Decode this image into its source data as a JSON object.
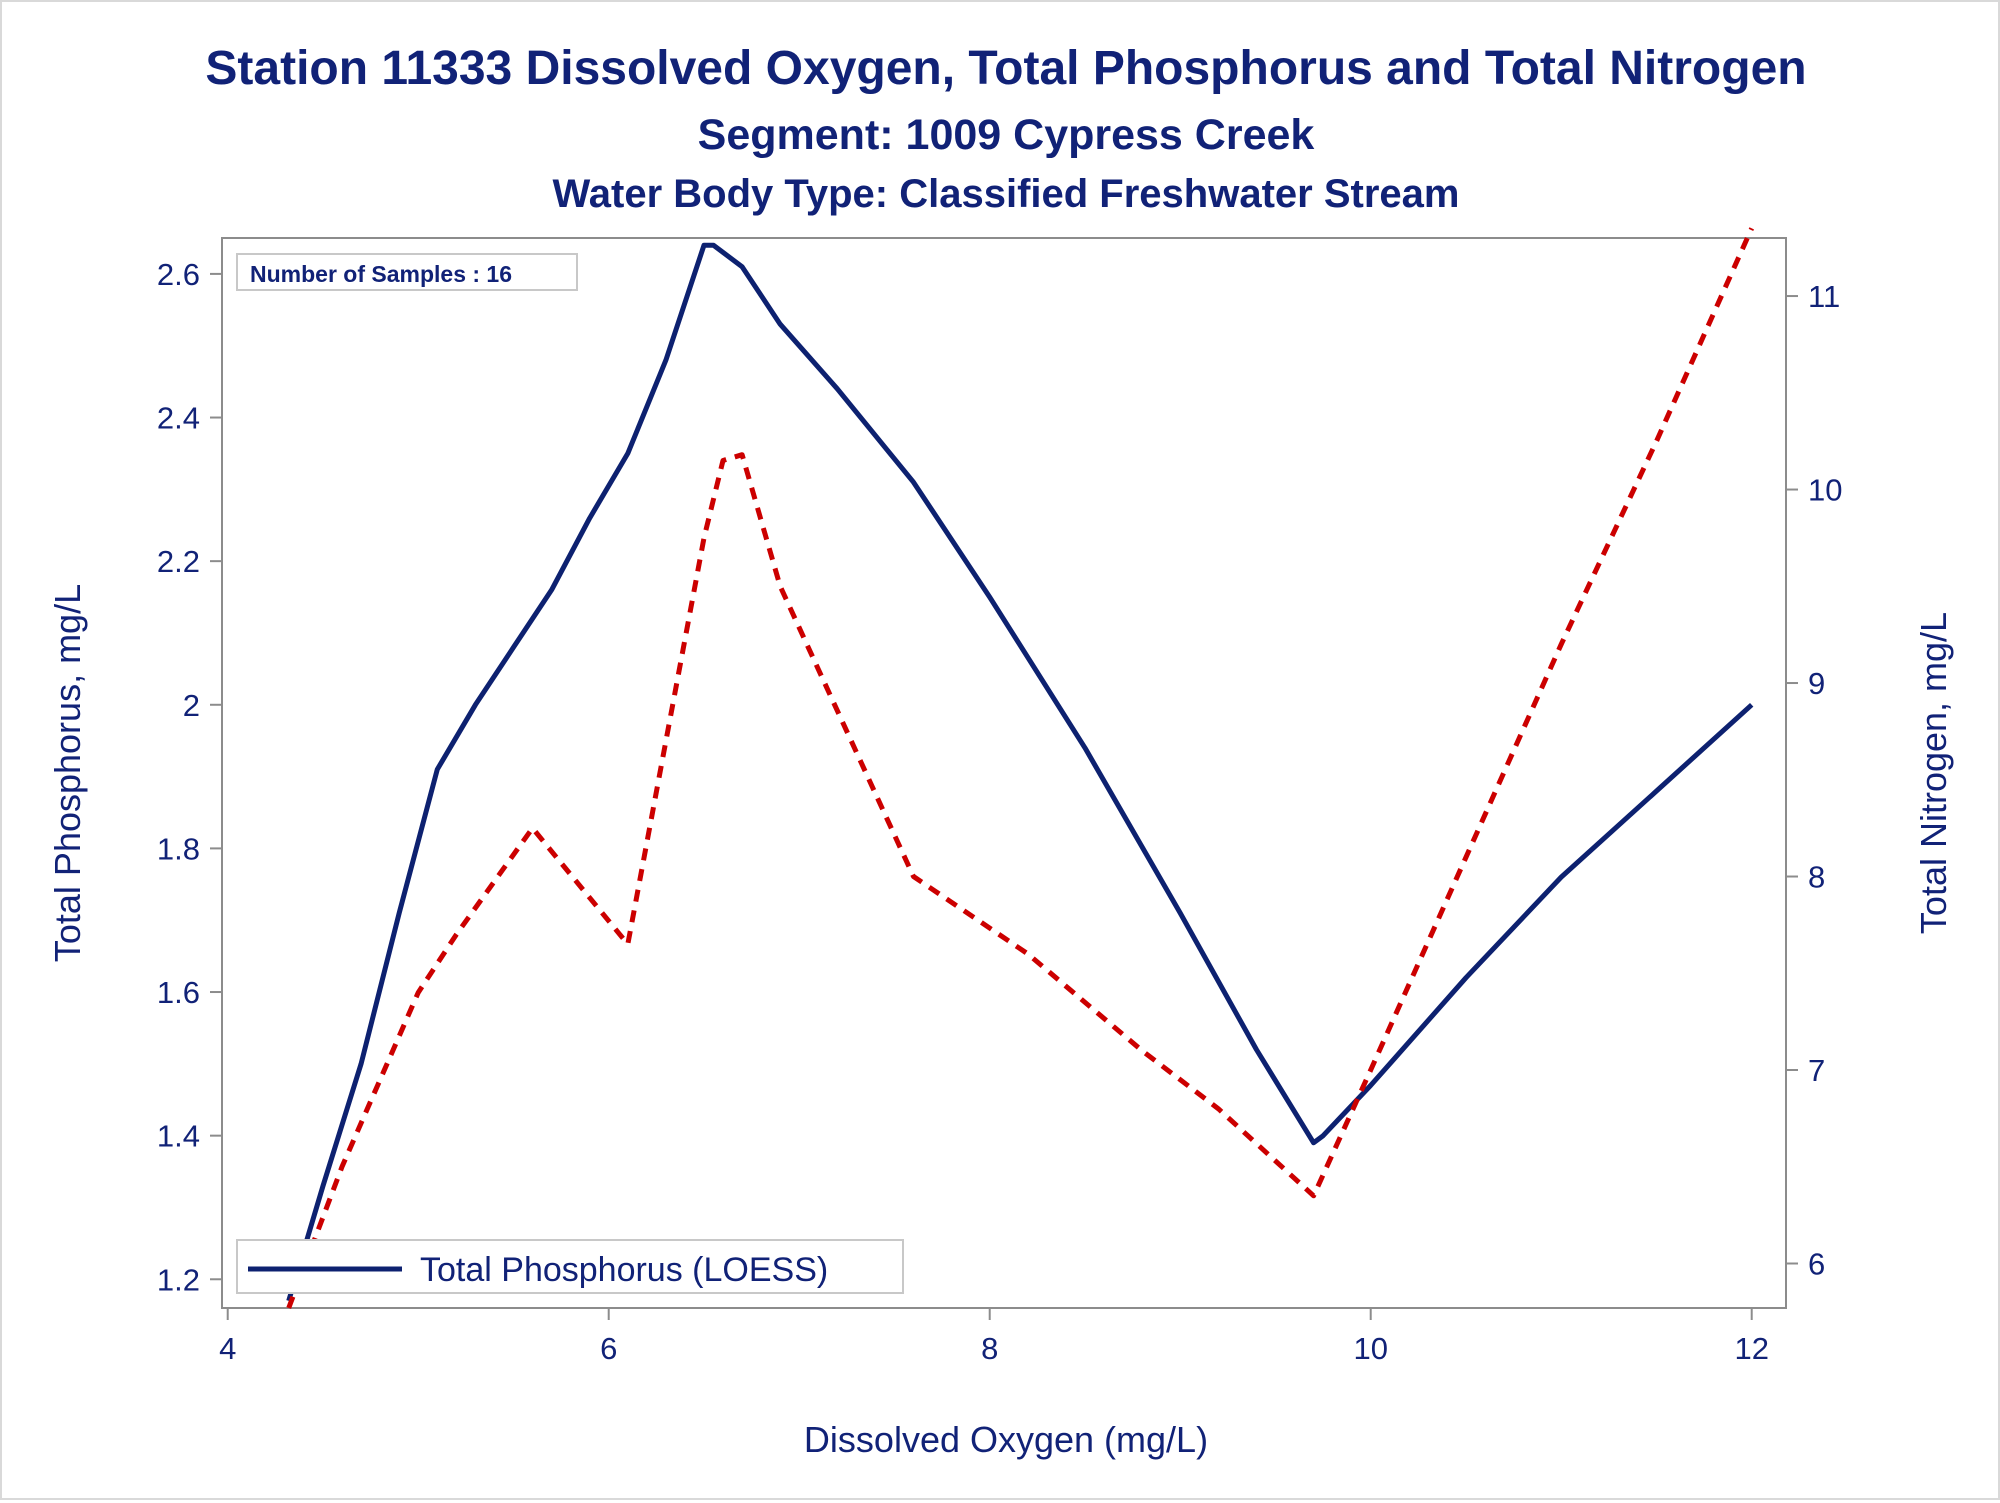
{
  "chart_data": {
    "type": "line",
    "title": "Station 11333  Dissolved Oxygen, Total Phosphorus and Total Nitrogen",
    "subtitle": "Segment: 1009  Cypress Creek",
    "subtitle2": "Water Body Type: Classified Freshwater Stream",
    "xlabel": "Dissolved Oxygen (mg/L)",
    "ylabel_left": "Total Phosphorus, mg/L",
    "ylabel_right": "Total Nitrogen, mg/L",
    "xlim": [
      3.97,
      12.18
    ],
    "ylim_left": [
      1.16,
      2.65
    ],
    "ylim_right": [
      5.77,
      11.3
    ],
    "x_ticks": [
      "4",
      "6",
      "8",
      "10",
      "12"
    ],
    "y_left_ticks": [
      "1.2",
      "1.4",
      "1.6",
      "1.8",
      "2",
      "2.2",
      "2.4",
      "2.6"
    ],
    "y_right_ticks": [
      "6",
      "7",
      "8",
      "9",
      "10",
      "11"
    ],
    "annotation": "Number of Samples : 16",
    "legend_position": "bottom-left",
    "colors": {
      "phosphorus": "#0d2170",
      "nitrogen": "#cc0000",
      "text": "#112277",
      "axis": "#8c8c8c"
    },
    "series": [
      {
        "name": "Total Phosphorus (LOESS)",
        "axis": "left",
        "style": "solid",
        "x": [
          4.32,
          4.5,
          4.7,
          4.9,
          5.1,
          5.3,
          5.5,
          5.7,
          5.9,
          6.1,
          6.3,
          6.5,
          6.55,
          6.6,
          6.7,
          6.9,
          7.2,
          7.6,
          8.0,
          8.5,
          9.0,
          9.4,
          9.7,
          9.75,
          10.0,
          10.5,
          11.0,
          11.5,
          12.0
        ],
        "y": [
          1.17,
          1.33,
          1.5,
          1.71,
          1.91,
          2.0,
          2.08,
          2.16,
          2.26,
          2.35,
          2.48,
          2.64,
          2.64,
          2.63,
          2.61,
          2.53,
          2.44,
          2.31,
          2.15,
          1.94,
          1.71,
          1.52,
          1.39,
          1.4,
          1.47,
          1.62,
          1.76,
          1.88,
          2.0
        ]
      },
      {
        "name": "Total Nitrogen",
        "axis": "right",
        "style": "dashed",
        "x": [
          4.32,
          4.6,
          5.0,
          5.2,
          5.6,
          6.1,
          6.5,
          6.6,
          6.7,
          6.9,
          7.6,
          8.2,
          8.8,
          9.2,
          9.7,
          10.0,
          10.5,
          11.0,
          11.5,
          12.0
        ],
        "y": [
          5.77,
          6.5,
          7.4,
          7.7,
          8.25,
          7.65,
          9.75,
          10.15,
          10.18,
          9.5,
          8.0,
          7.6,
          7.1,
          6.8,
          6.35,
          7.0,
          8.1,
          9.2,
          10.25,
          11.35
        ]
      }
    ]
  }
}
